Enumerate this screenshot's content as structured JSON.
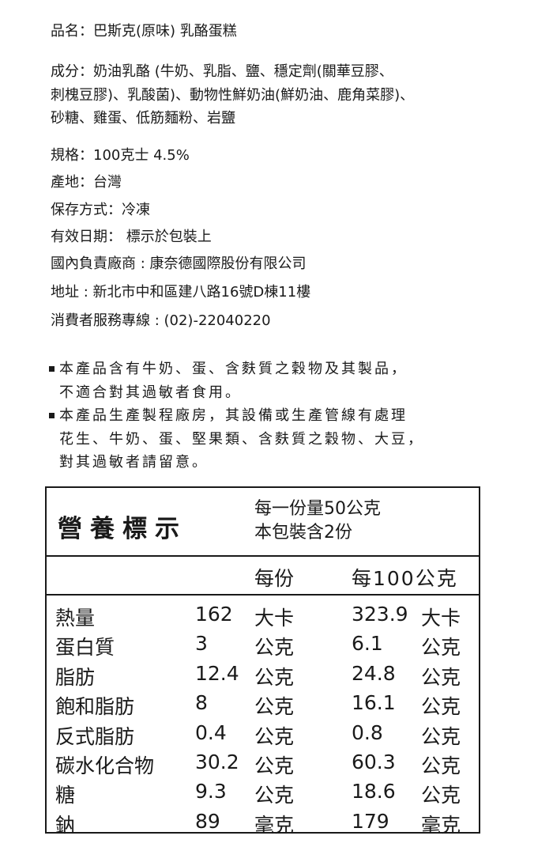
{
  "product_name": "品名：巴斯克(原味) 乳酪蛋糕",
  "ingredients": [
    "成分：奶油乳酪 (牛奶、乳脂、鹽、穩定劑(關華豆膠、",
    "刺槐豆膠)、乳酸菌)、動物性鮮奶油(鮮奶油、鹿角菜膠)、",
    "砂糖、雞蛋、低筋麵粉、岩鹽"
  ],
  "info": [
    "規格：100克士 4.5%",
    "產地：台灣",
    "保存方式：冷凍",
    "有效日期： 標示於包裝上",
    "國內負責廠商 : 康奈德國際股份有限公司",
    "地址 : 新北市中和區建八路16號D棟11樓",
    "消費者服務專線 : (02)-22040220"
  ],
  "allergens": [
    {
      "lines": [
        "本產品含有牛奶、蛋、含麩質之穀物及其製品，",
        "不適合對其過敏者食用。"
      ]
    },
    {
      "lines": [
        "本產品生產製程廠房，其設備或生產管線有處理",
        "花生、牛奶、蛋、堅果類、含麩質之穀物、大豆，",
        "對其過敏者請留意。"
      ]
    }
  ],
  "nutrition": {
    "title": "營養標示",
    "serving_size": "每一份量50公克",
    "servings": "本包裝含2份",
    "col_per_serving": "每份",
    "col_per_100g": "每100公克",
    "rows": [
      {
        "name": "熱量",
        "v1": "162",
        "u1": "大卡",
        "v2": "323.9",
        "u2": "大卡"
      },
      {
        "name": "蛋白質",
        "v1": "3",
        "u1": "公克",
        "v2": "6.1",
        "u2": "公克"
      },
      {
        "name": "脂肪",
        "v1": "12.4",
        "u1": "公克",
        "v2": "24.8",
        "u2": "公克"
      },
      {
        "name": "飽和脂肪",
        "v1": "8",
        "u1": "公克",
        "v2": "16.1",
        "u2": "公克"
      },
      {
        "name": "反式脂肪",
        "v1": "0.4",
        "u1": "公克",
        "v2": "0.8",
        "u2": "公克"
      },
      {
        "name": "碳水化合物",
        "v1": "30.2",
        "u1": "公克",
        "v2": "60.3",
        "u2": "公克"
      },
      {
        "name": "糖",
        "v1": "9.3",
        "u1": "公克",
        "v2": "18.6",
        "u2": "公克"
      },
      {
        "name": "鈉",
        "v1": "89",
        "u1": "毫克",
        "v2": "179",
        "u2": "毫克"
      }
    ]
  }
}
